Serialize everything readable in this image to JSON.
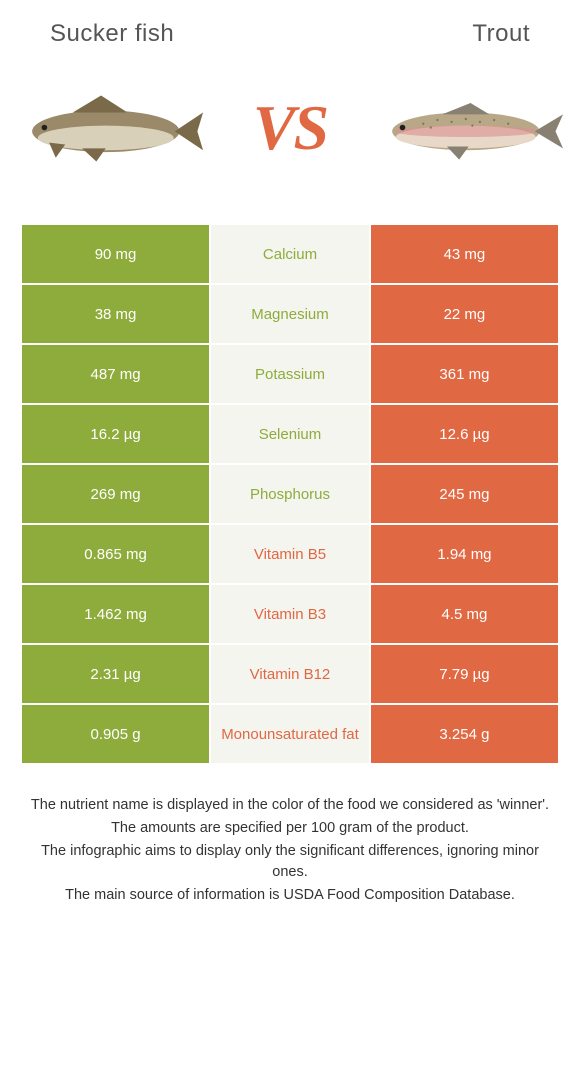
{
  "colors": {
    "left": "#8eac3b",
    "right": "#e06843",
    "mid_bg": "#f5f5f0",
    "text_white": "#ffffff",
    "header_text": "#555555",
    "footer_text": "#333333",
    "vs_text": "#e06843"
  },
  "header": {
    "left_title": "Sucker fish",
    "right_title": "Trout",
    "vs": "VS"
  },
  "rows": [
    {
      "left": "90 mg",
      "label": "Calcium",
      "right": "43 mg",
      "winner": "left"
    },
    {
      "left": "38 mg",
      "label": "Magnesium",
      "right": "22 mg",
      "winner": "left"
    },
    {
      "left": "487 mg",
      "label": "Potassium",
      "right": "361 mg",
      "winner": "left"
    },
    {
      "left": "16.2 µg",
      "label": "Selenium",
      "right": "12.6 µg",
      "winner": "left"
    },
    {
      "left": "269 mg",
      "label": "Phosphorus",
      "right": "245 mg",
      "winner": "left"
    },
    {
      "left": "0.865 mg",
      "label": "Vitamin B5",
      "right": "1.94 mg",
      "winner": "right"
    },
    {
      "left": "1.462 mg",
      "label": "Vitamin B3",
      "right": "4.5 mg",
      "winner": "right"
    },
    {
      "left": "2.31 µg",
      "label": "Vitamin B12",
      "right": "7.79 µg",
      "winner": "right"
    },
    {
      "left": "0.905 g",
      "label": "Monounsaturated fat",
      "right": "3.254 g",
      "winner": "right"
    }
  ],
  "footer": {
    "line1": "The nutrient name is displayed in the color of the food we considered as 'winner'.",
    "line2": "The amounts are specified per 100 gram of the product.",
    "line3": "The infographic aims to display only the significant differences, ignoring minor ones.",
    "line4": "The main source of information is USDA Food Composition Database."
  },
  "fish_left": {
    "body_fill": "#9a8a6a",
    "belly_fill": "#d8d0b8",
    "fin_fill": "#7a6a4a"
  },
  "fish_right": {
    "body_fill": "#b8a888",
    "belly_fill": "#e8d8c8",
    "stripe_fill": "#d89090",
    "fin_fill": "#888070"
  }
}
